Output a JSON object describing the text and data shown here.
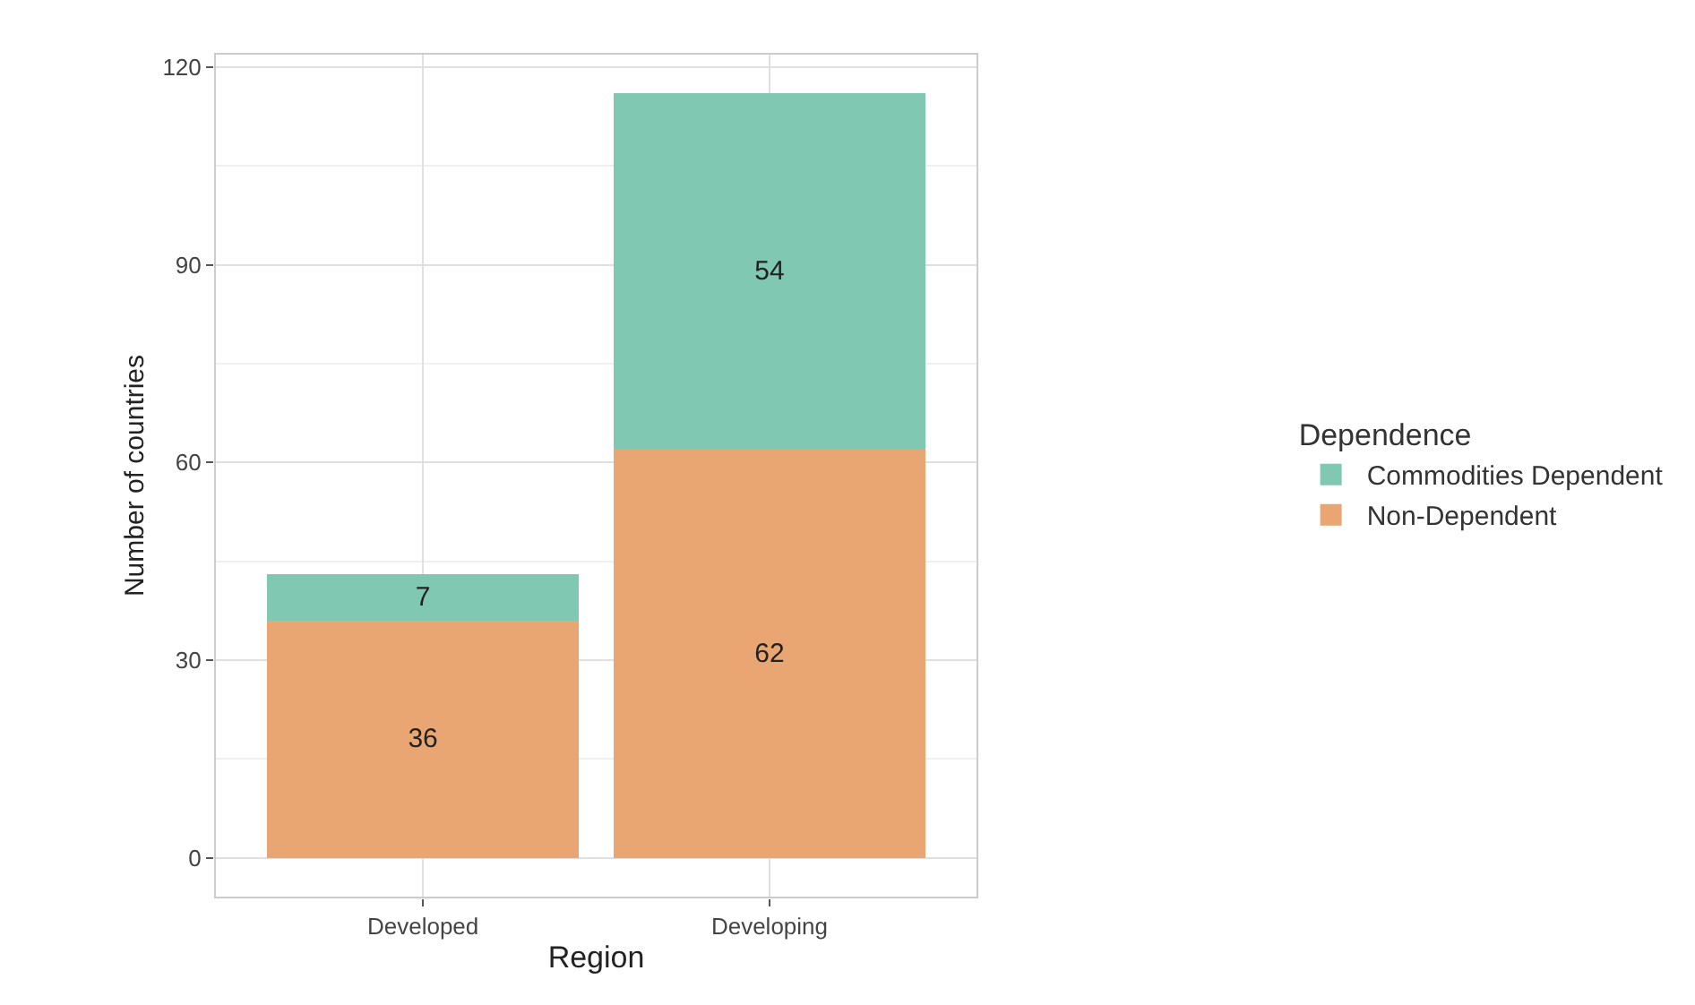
{
  "chart_data": {
    "type": "bar",
    "stacked": true,
    "xlabel": "Region",
    "ylabel": "Number of countries",
    "legend_title": "Dependence",
    "categories": [
      "Developed",
      "Developing"
    ],
    "series": [
      {
        "name": "Non-Dependent",
        "color": "#e9a672",
        "values": [
          36,
          62
        ]
      },
      {
        "name": "Commodities Dependent",
        "color": "#80c8b2",
        "values": [
          7,
          54
        ]
      }
    ],
    "ylim": [
      -6,
      122
    ],
    "yticks": [
      0,
      30,
      60,
      90,
      120
    ],
    "grid": true,
    "legend": "right",
    "data_labels": true
  }
}
